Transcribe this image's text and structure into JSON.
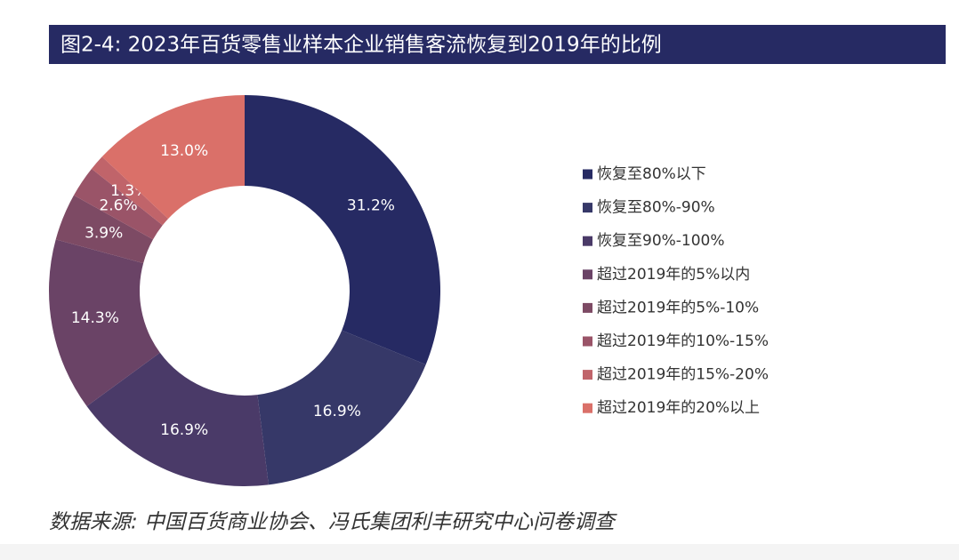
{
  "chart_data": {
    "type": "pie",
    "title": "图2-4: 2023年百货零售业样本企业销售客流恢复到2019年的比例",
    "categories": [
      "恢复至80%以下",
      "恢复至80%-90%",
      "恢复至90%-100%",
      "超过2019年的5%以内",
      "超过2019年的5%-10%",
      "超过2019年的10%-15%",
      "超过2019年的15%-20%",
      "超过2019年的20%以上"
    ],
    "values": [
      31.2,
      16.9,
      16.9,
      14.3,
      3.9,
      2.6,
      1.3,
      13.0
    ],
    "value_labels": [
      "31.2%",
      "16.9%",
      "16.9%",
      "14.3%",
      "3.9%",
      "2.6%",
      "1.3%",
      "13.0%"
    ],
    "colors": [
      "#262a63",
      "#363868",
      "#4a3a68",
      "#6a4366",
      "#7d4a64",
      "#9a5468",
      "#c0646a",
      "#da7069"
    ],
    "source": "数据来源: 中国百货商业协会、冯氏集团利丰研究中心问卷调查"
  }
}
